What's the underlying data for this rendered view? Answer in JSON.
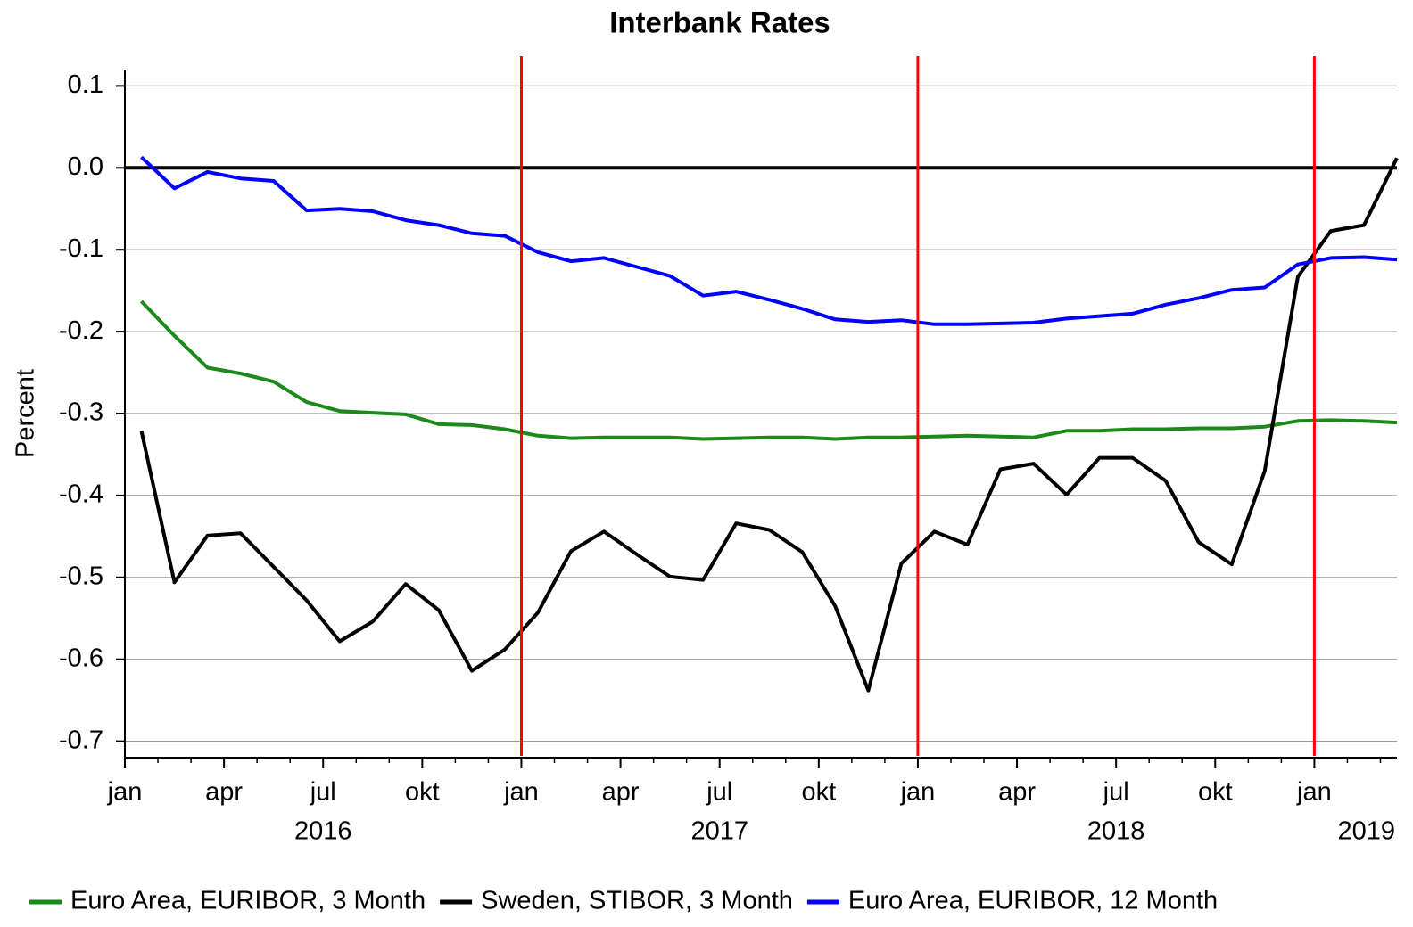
{
  "chart_data": {
    "type": "line",
    "title": "Interbank Rates",
    "y_label": "Percent",
    "x": [
      "2016-01",
      "2016-02",
      "2016-03",
      "2016-04",
      "2016-05",
      "2016-06",
      "2016-07",
      "2016-08",
      "2016-09",
      "2016-10",
      "2016-11",
      "2016-12",
      "2017-01",
      "2017-02",
      "2017-03",
      "2017-04",
      "2017-05",
      "2017-06",
      "2017-07",
      "2017-08",
      "2017-09",
      "2017-10",
      "2017-11",
      "2017-12",
      "2018-01",
      "2018-02",
      "2018-03",
      "2018-04",
      "2018-05",
      "2018-06",
      "2018-07",
      "2018-08",
      "2018-09",
      "2018-10",
      "2018-11",
      "2018-12",
      "2019-01",
      "2019-02",
      "2019-03"
    ],
    "series": [
      {
        "name": "Euro Area, EURIBOR, 3 Month",
        "color": "#1a8a1a",
        "values": [
          -0.163,
          -0.205,
          -0.244,
          -0.251,
          -0.261,
          -0.286,
          -0.297,
          -0.299,
          -0.301,
          -0.313,
          -0.314,
          -0.319,
          -0.327,
          -0.33,
          -0.329,
          -0.329,
          -0.329,
          -0.331,
          -0.33,
          -0.329,
          -0.329,
          -0.331,
          -0.329,
          -0.329,
          -0.328,
          -0.327,
          -0.328,
          -0.329,
          -0.321,
          -0.321,
          -0.319,
          -0.319,
          -0.318,
          -0.318,
          -0.316,
          -0.309,
          -0.308,
          -0.309,
          -0.311
        ]
      },
      {
        "name": "Sweden, STIBOR, 3 Month",
        "color": "#000000",
        "values": [
          -0.321,
          -0.506,
          -0.449,
          -0.446,
          -0.487,
          -0.528,
          -0.578,
          -0.554,
          -0.508,
          -0.54,
          -0.614,
          -0.588,
          -0.543,
          -0.468,
          -0.444,
          -0.472,
          -0.499,
          -0.503,
          -0.434,
          -0.442,
          -0.469,
          -0.535,
          -0.638,
          -0.483,
          -0.444,
          -0.46,
          -0.368,
          -0.361,
          -0.399,
          -0.354,
          -0.354,
          -0.382,
          -0.457,
          -0.484,
          -0.37,
          -0.133,
          -0.077,
          -0.07,
          0.012
        ]
      },
      {
        "name": "Euro Area, EURIBOR, 12 Month",
        "color": "#0000ff",
        "values": [
          0.013,
          -0.025,
          -0.005,
          -0.013,
          -0.016,
          -0.052,
          -0.05,
          -0.053,
          -0.064,
          -0.07,
          -0.08,
          -0.083,
          -0.103,
          -0.114,
          -0.11,
          -0.121,
          -0.132,
          -0.156,
          -0.151,
          -0.161,
          -0.172,
          -0.185,
          -0.188,
          -0.186,
          -0.191,
          -0.191,
          -0.19,
          -0.189,
          -0.184,
          -0.181,
          -0.178,
          -0.167,
          -0.159,
          -0.149,
          -0.146,
          -0.118,
          -0.11,
          -0.109,
          -0.112
        ]
      }
    ],
    "xlim": [
      "2016-01",
      "2019-03"
    ],
    "xticks": [
      {
        "value": "2016-01",
        "label": "jan"
      },
      {
        "value": "2016-04",
        "label": "apr"
      },
      {
        "value": "2016-07",
        "label": "jul"
      },
      {
        "value": "2016-10",
        "label": "okt"
      },
      {
        "value": "2017-01",
        "label": "jan"
      },
      {
        "value": "2017-04",
        "label": "apr"
      },
      {
        "value": "2017-07",
        "label": "jul"
      },
      {
        "value": "2017-10",
        "label": "okt"
      },
      {
        "value": "2018-01",
        "label": "jan"
      },
      {
        "value": "2018-04",
        "label": "apr"
      },
      {
        "value": "2018-07",
        "label": "jul"
      },
      {
        "value": "2018-10",
        "label": "okt"
      },
      {
        "value": "2019-01",
        "label": "jan"
      }
    ],
    "xyears": [
      {
        "value": "2016-07",
        "label": "2016"
      },
      {
        "value": "2017-07",
        "label": "2017"
      },
      {
        "value": "2018-07",
        "label": "2018"
      },
      {
        "value": "2019-07",
        "label": "2019"
      }
    ],
    "ylim": [
      -0.72,
      0.12
    ],
    "yticks": [
      0.1,
      {
        "value": 0,
        "label": "0.0"
      },
      -0.1,
      -0.2,
      -0.3,
      -0.4,
      -0.5,
      -0.6,
      -0.7
    ],
    "grid": true,
    "zero_line": {
      "value": 0,
      "color": "#000000"
    },
    "vlines": {
      "values": [
        "2017-01",
        "2018-01",
        "2019-01"
      ],
      "color": "#ff0000"
    },
    "legend": "bottom"
  }
}
